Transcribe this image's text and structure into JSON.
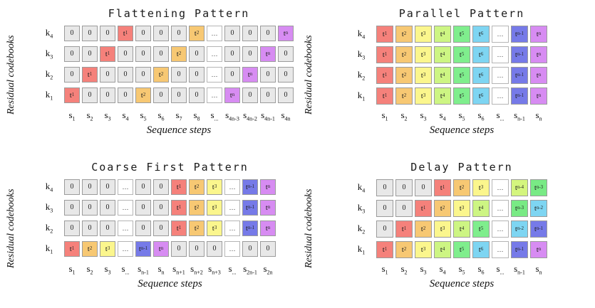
{
  "colors": {
    "zero_fill": "#e8e8e8",
    "dots_fill": "#ffffff",
    "cell_border": "#9b9b9b",
    "tokens": {
      "t1": "#f5817b",
      "t2": "#f7c873",
      "t3": "#fbf68d",
      "t4": "#cdf583",
      "t5": "#7fee8d",
      "t6": "#7ed5f2",
      "tn-4": "#d4f57e",
      "tn-3": "#79ea85",
      "tn-2": "#7ed5f2",
      "tn-1": "#767ae8",
      "tn": "#d78cf2"
    }
  },
  "panels": [
    {
      "id": "flattening",
      "title": "Flattening Pattern",
      "ylabel": "Residual codebooks",
      "xlabel": "Sequence steps",
      "row_labels": [
        "4",
        "3",
        "2",
        "1"
      ],
      "col_labels": [
        "1",
        "2",
        "3",
        "4",
        "5",
        "6",
        "7",
        "8",
        "...",
        "4n-3",
        "4n-2",
        "4n-1",
        "4n"
      ],
      "rows": [
        [
          "0",
          "0",
          "0",
          "t1",
          "0",
          "0",
          "0",
          "t2",
          "...",
          "0",
          "0",
          "0",
          "tn"
        ],
        [
          "0",
          "0",
          "t1",
          "0",
          "0",
          "0",
          "t2",
          "0",
          "...",
          "0",
          "0",
          "tn",
          "0"
        ],
        [
          "0",
          "t1",
          "0",
          "0",
          "0",
          "t2",
          "0",
          "0",
          "...",
          "0",
          "tn",
          "0",
          "0"
        ],
        [
          "t1",
          "0",
          "0",
          "0",
          "t2",
          "0",
          "0",
          "0",
          "...",
          "tn",
          "0",
          "0",
          "0"
        ]
      ]
    },
    {
      "id": "parallel",
      "title": "Parallel Pattern",
      "ylabel": "Residual codebooks",
      "xlabel": "Sequence steps",
      "row_labels": [
        "4",
        "3",
        "2",
        "1"
      ],
      "col_labels": [
        "1",
        "2",
        "3",
        "4",
        "5",
        "6",
        "...",
        "n-1",
        "n"
      ],
      "rows": [
        [
          "t1",
          "t2",
          "t3",
          "t4",
          "t5",
          "t6",
          "...",
          "tn-1",
          "tn"
        ],
        [
          "t1",
          "t2",
          "t3",
          "t4",
          "t5",
          "t6",
          "...",
          "tn-1",
          "tn"
        ],
        [
          "t1",
          "t2",
          "t3",
          "t4",
          "t5",
          "t6",
          "...",
          "tn-1",
          "tn"
        ],
        [
          "t1",
          "t2",
          "t3",
          "t4",
          "t5",
          "t6",
          "...",
          "tn-1",
          "tn"
        ]
      ]
    },
    {
      "id": "coarse-first",
      "title": "Coarse First Pattern",
      "ylabel": "Residual codebooks",
      "xlabel": "Sequence steps",
      "row_labels": [
        "4",
        "3",
        "2",
        "1"
      ],
      "col_labels": [
        "1",
        "2",
        "3",
        "...",
        "n-1",
        "n",
        "n+1",
        "n+2",
        "n+3",
        "...",
        "2n-1",
        "2n"
      ],
      "rows": [
        [
          "0",
          "0",
          "0",
          "...",
          "0",
          "0",
          "t1",
          "t2",
          "t3",
          "...",
          "tn-1",
          "tn"
        ],
        [
          "0",
          "0",
          "0",
          "...",
          "0",
          "0",
          "t1",
          "t2",
          "t3",
          "...",
          "tn-1",
          "tn"
        ],
        [
          "0",
          "0",
          "0",
          "...",
          "0",
          "0",
          "t1",
          "t2",
          "t3",
          "...",
          "tn-1",
          "tn"
        ],
        [
          "t1",
          "t2",
          "t3",
          "...",
          "tn-1",
          "tn",
          "0",
          "0",
          "0",
          "...",
          "0",
          "0"
        ]
      ]
    },
    {
      "id": "delay",
      "title": "Delay Pattern",
      "ylabel": "Residual codebooks",
      "xlabel": "Sequence steps",
      "row_labels": [
        "4",
        "3",
        "2",
        "1"
      ],
      "col_labels": [
        "1",
        "2",
        "3",
        "4",
        "5",
        "6",
        "...",
        "n-1",
        "n"
      ],
      "rows": [
        [
          "0",
          "0",
          "0",
          "t1",
          "t2",
          "t3",
          "...",
          "tn-4",
          "tn-3"
        ],
        [
          "0",
          "0",
          "t1",
          "t2",
          "t3",
          "t4",
          "...",
          "tn-3",
          "tn-2"
        ],
        [
          "0",
          "t1",
          "t2",
          "t3",
          "t4",
          "t5",
          "...",
          "tn-2",
          "tn-1"
        ],
        [
          "t1",
          "t2",
          "t3",
          "t4",
          "t5",
          "t6",
          "...",
          "tn-1",
          "tn"
        ]
      ]
    }
  ]
}
